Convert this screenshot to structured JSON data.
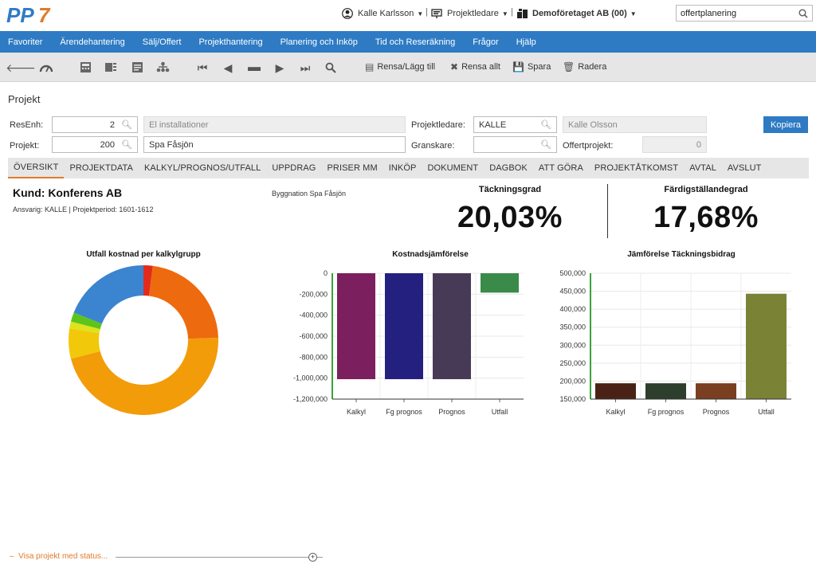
{
  "header": {
    "user_name": "Kalle Karlsson",
    "role": "Projektledare",
    "company": "Demoföretaget AB (00)",
    "search_value": "offertplanering"
  },
  "nav": [
    "Favoriter",
    "Ärendehantering",
    "Sälj/Offert",
    "Projekthantering",
    "Planering och Inköp",
    "Tid och Reseräkning",
    "Frågor",
    "Hjälp"
  ],
  "toolbar": {
    "clear_add": "Rensa/Lägg till",
    "clear_all": "Rensa allt",
    "save": "Spara",
    "delete": "Radera"
  },
  "page": {
    "title": "Projekt"
  },
  "form": {
    "resenh_label": "ResEnh:",
    "resenh_value": "2",
    "resenh_name": "El installationer",
    "projekt_label": "Projekt:",
    "projekt_value": "200",
    "projekt_name": "Spa Fåsjön",
    "projektledare_label": "Projektledare:",
    "projektledare_value": "KALLE",
    "projektledare_name": "Kalle Olsson",
    "granskare_label": "Granskare:",
    "granskare_value": "",
    "offertprojekt_label": "Offertprojekt:",
    "offertprojekt_value": "0",
    "copy_button": "Kopiera"
  },
  "tabs": [
    "ÖVERSIKT",
    "PROJEKTDATA",
    "KALKYL/PROGNOS/UTFALL",
    "UPPDRAG",
    "PRISER MM",
    "INKÖP",
    "DOKUMENT",
    "DAGBOK",
    "ATT GÖRA",
    "PROJEKTÅTKOMST",
    "AVTAL",
    "AVSLUT"
  ],
  "summary": {
    "customer": "Kund: Konferens AB",
    "responsible": "Ansvarig: KALLE | Projektperiod: 1601-1612",
    "description": "Byggnation Spa Fåsjön",
    "kpi1_label": "Täckningsgrad",
    "kpi1_value": "20,03%",
    "kpi2_label": "Färdigställandegrad",
    "kpi2_value": "17,68%"
  },
  "colors": {
    "nav_blue": "#2e7bc4",
    "accent_orange": "#e07b2a"
  },
  "footer": {
    "status_link": "Visa projekt med status..."
  },
  "chart_data": [
    {
      "type": "pie",
      "title": "Utfall kostnad per kalkylgrupp",
      "donut": true,
      "slices": [
        {
          "value": 2.0,
          "color": "#e32b1c"
        },
        {
          "value": 22.5,
          "color": "#ee6a0e"
        },
        {
          "value": 46.5,
          "color": "#f29c0a"
        },
        {
          "value": 6.5,
          "color": "#f2c80a"
        },
        {
          "value": 1.5,
          "color": "#dfe21c"
        },
        {
          "value": 2.0,
          "color": "#5cc51a"
        },
        {
          "value": 19.0,
          "color": "#3b84cf"
        }
      ]
    },
    {
      "type": "bar",
      "title": "Kostnadsjämförelse",
      "categories": [
        "Kalkyl",
        "Fg prognos",
        "Prognos",
        "Utfall"
      ],
      "values": [
        -1010000,
        -1010000,
        -1010000,
        -185000
      ],
      "colors": [
        "#7b1f5e",
        "#232080",
        "#473a57",
        "#3a8a4a"
      ],
      "ylim": [
        -1200000,
        0
      ],
      "yticks": [
        0,
        -200000,
        -400000,
        -600000,
        -800000,
        -1000000,
        -1200000
      ],
      "ytick_labels": [
        "0",
        "-200,000",
        "-400,000",
        "-600,000",
        "-800,000",
        "-1,000,000",
        "-1,200,000"
      ]
    },
    {
      "type": "bar",
      "title": "Jämförelse Täckningsbidrag",
      "categories": [
        "Kalkyl",
        "Fg prognos",
        "Prognos",
        "Utfall"
      ],
      "values": [
        194000,
        194000,
        194000,
        443000
      ],
      "colors": [
        "#4a2215",
        "#2d3f2c",
        "#7a3f20",
        "#7a8236"
      ],
      "ylim": [
        150000,
        500000
      ],
      "yticks": [
        500000,
        450000,
        400000,
        350000,
        300000,
        250000,
        200000,
        150000
      ],
      "ytick_labels": [
        "500,000",
        "450,000",
        "400,000",
        "350,000",
        "300,000",
        "250,000",
        "200,000",
        "150,000"
      ]
    }
  ]
}
